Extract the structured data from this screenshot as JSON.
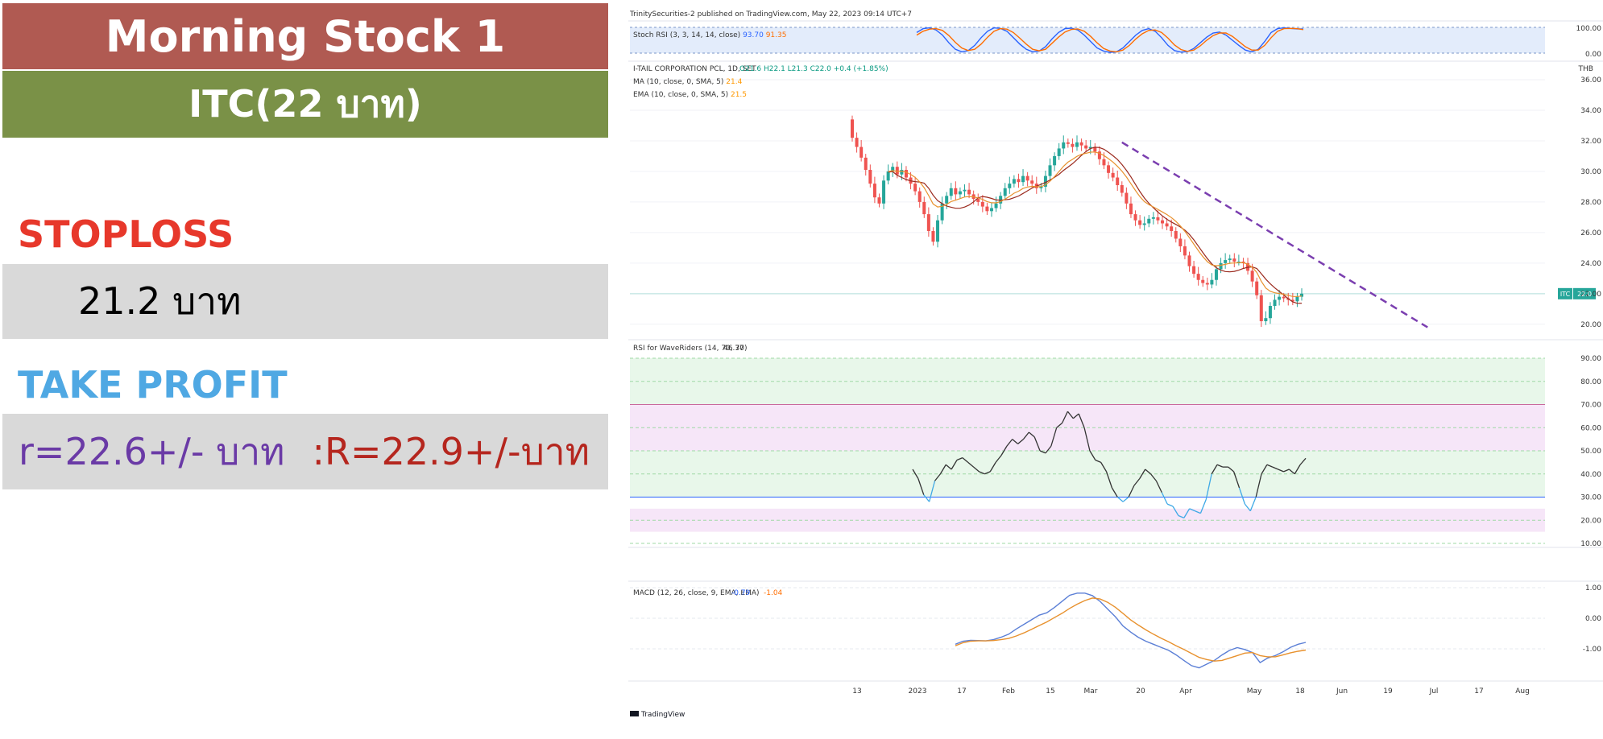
{
  "card": {
    "title": "Morning Stock 1",
    "subtitle": "ITC(22 บาท)",
    "stoploss_label": "STOPLOSS",
    "stoploss_value": "21.2 บาท",
    "takeprofit_label": "TAKE PROFIT",
    "target_r": "r=22.6+/- บาท",
    "target_R": ":R=22.9+/-บาท"
  },
  "colors": {
    "title_bg": "#b05a52",
    "subtitle_bg": "#7a9147",
    "stoploss": "#e7382b",
    "takeprofit": "#4fa8e3",
    "value_box": "#d9d9d9",
    "target_r": "#6a3aa6",
    "target_R": "#b5261e",
    "up_candle": "#26a69a",
    "down_candle": "#ef5350",
    "ma": "#9b2a1e",
    "ema": "#e8912d",
    "trendline": "#7b3fb0"
  },
  "chart_data": [
    {
      "type": "candlestick",
      "header": "TrinitySecurities-2 published on TradingView.com, May 22, 2023 09:14 UTC+7",
      "symbol_line": "I-TAIL CORPORATION PCL, 1D, SET",
      "ohlc_text": "O21.6  H22.1  L21.3  C22.0  +0.4 (+1.85%)",
      "ma_label": "MA (10, close, 0, SMA, 5)",
      "ma_value": "21.4",
      "ema_label": "EMA (10, close, 0, SMA, 5)",
      "ema_value": "21.5",
      "currency": "THB",
      "price_ticks": [
        "36.00",
        "34.00",
        "32.00",
        "30.00",
        "28.00",
        "26.00",
        "24.00",
        "22.00",
        "20.00"
      ],
      "ylim": [
        19.2,
        37
      ],
      "last_price_tag": "ITC",
      "last_price": "22.0",
      "x_ticks": [
        "13",
        "2023",
        "17",
        "Feb",
        "15",
        "Mar",
        "20",
        "Apr",
        "May",
        "18",
        "Jun",
        "19",
        "Jul",
        "17",
        "Aug"
      ],
      "closes": [
        32.2,
        31.6,
        30.9,
        30.1,
        29.2,
        28.3,
        27.9,
        29.4,
        30.0,
        30.3,
        29.8,
        30.1,
        29.6,
        29.2,
        28.7,
        28.0,
        27.2,
        26.1,
        25.4,
        26.8,
        27.9,
        28.4,
        28.9,
        28.5,
        28.7,
        28.8,
        28.5,
        28.2,
        28.0,
        27.7,
        27.4,
        27.6,
        27.9,
        28.4,
        28.9,
        29.2,
        29.5,
        29.3,
        29.7,
        29.4,
        29.2,
        28.9,
        29.0,
        29.7,
        30.4,
        31.0,
        31.5,
        31.9,
        31.8,
        31.6,
        31.9,
        31.7,
        31.5,
        31.6,
        31.3,
        30.8,
        30.4,
        29.9,
        29.6,
        29.1,
        28.6,
        27.9,
        27.2,
        26.8,
        26.5,
        26.6,
        26.9,
        27.0,
        26.8,
        26.6,
        26.4,
        26.1,
        25.6,
        25.1,
        24.5,
        23.8,
        23.3,
        22.9,
        22.7,
        22.6,
        22.9,
        23.6,
        24.0,
        24.2,
        24.3,
        24.1,
        24.1,
        24.0,
        23.5,
        22.8,
        21.9,
        20.2,
        20.4,
        21.2,
        21.6,
        21.8,
        21.7,
        21.6,
        21.5,
        21.8,
        22.0
      ],
      "trendline_from_to": [
        [
          31.9,
          60
        ],
        [
          19.8,
          128
        ]
      ],
      "stoch_rsi_label": "Stoch RSI (3, 3, 14, 14, close)",
      "stoch_rsi_k": "93.70",
      "stoch_rsi_d": "91.35",
      "stoch_ticks": [
        "100.00",
        "0.00"
      ],
      "stoch_k": [
        80,
        95,
        98,
        90,
        70,
        40,
        15,
        5,
        10,
        30,
        60,
        85,
        98,
        96,
        85,
        60,
        35,
        15,
        5,
        8,
        25,
        55,
        80,
        95,
        97,
        90,
        70,
        45,
        20,
        8,
        3,
        5,
        20,
        45,
        70,
        88,
        95,
        85,
        60,
        30,
        10,
        4,
        6,
        18,
        40,
        62,
        78,
        82,
        70,
        50,
        30,
        12,
        5,
        15,
        45,
        80,
        95,
        98,
        96,
        94,
        93.7
      ],
      "stoch_d": [
        70,
        85,
        93,
        95,
        88,
        68,
        42,
        20,
        10,
        15,
        35,
        62,
        85,
        95,
        93,
        80,
        58,
        35,
        15,
        9,
        15,
        38,
        62,
        82,
        92,
        94,
        85,
        65,
        40,
        18,
        8,
        5,
        12,
        30,
        55,
        75,
        88,
        90,
        80,
        58,
        32,
        14,
        7,
        12,
        28,
        50,
        68,
        78,
        78,
        65,
        45,
        25,
        12,
        12,
        30,
        60,
        85,
        95,
        96,
        95,
        91.35
      ],
      "rsi_label": "RSI for WaveRiders (14, 70, 30)",
      "rsi_value": "46.77",
      "rsi_ticks": [
        "90.00",
        "80.00",
        "70.00",
        "60.00",
        "50.00",
        "40.00",
        "30.00",
        "20.00",
        "10.00"
      ],
      "rsi": [
        42,
        38,
        31,
        28,
        37,
        40,
        44,
        42,
        46,
        47,
        45,
        43,
        41,
        40,
        41,
        45,
        48,
        52,
        55,
        53,
        55,
        58,
        56,
        50,
        49,
        52,
        60,
        62,
        67,
        64,
        66,
        60,
        50,
        46,
        45,
        41,
        34,
        30,
        28,
        30,
        35,
        38,
        42,
        40,
        37,
        32,
        27,
        26,
        22,
        21,
        25,
        24,
        23,
        29,
        40,
        44,
        43,
        43,
        41,
        34,
        27,
        24,
        30,
        40,
        44,
        43,
        42,
        41,
        42,
        40,
        44,
        46.77
      ],
      "macd_label": "MACD (12, 26, close, 9, EMA, EMA)",
      "macd_value": "-0.79",
      "macd_signal_value": "-1.04",
      "macd_ticks": [
        "1.00",
        "0.00",
        "-1.00"
      ],
      "macd": [
        -0.85,
        -0.75,
        -0.72,
        -0.73,
        -0.74,
        -0.7,
        -0.62,
        -0.52,
        -0.35,
        -0.2,
        -0.05,
        0.1,
        0.18,
        0.35,
        0.55,
        0.75,
        0.82,
        0.82,
        0.74,
        0.55,
        0.3,
        0.05,
        -0.25,
        -0.45,
        -0.62,
        -0.75,
        -0.85,
        -0.95,
        -1.05,
        -1.2,
        -1.38,
        -1.55,
        -1.62,
        -1.5,
        -1.38,
        -1.2,
        -1.05,
        -0.96,
        -1.02,
        -1.12,
        -1.45,
        -1.3,
        -1.22,
        -1.1,
        -0.95,
        -0.85,
        -0.79
      ],
      "macd_signal": [
        -0.9,
        -0.8,
        -0.75,
        -0.74,
        -0.74,
        -0.73,
        -0.7,
        -0.66,
        -0.58,
        -0.48,
        -0.36,
        -0.24,
        -0.12,
        0.02,
        0.16,
        0.32,
        0.46,
        0.58,
        0.66,
        0.63,
        0.52,
        0.36,
        0.16,
        -0.05,
        -0.22,
        -0.38,
        -0.52,
        -0.65,
        -0.77,
        -0.9,
        -1.02,
        -1.15,
        -1.28,
        -1.35,
        -1.4,
        -1.38,
        -1.3,
        -1.22,
        -1.14,
        -1.12,
        -1.22,
        -1.26,
        -1.26,
        -1.2,
        -1.13,
        -1.08,
        -1.04
      ],
      "footer": "TradingView"
    }
  ]
}
